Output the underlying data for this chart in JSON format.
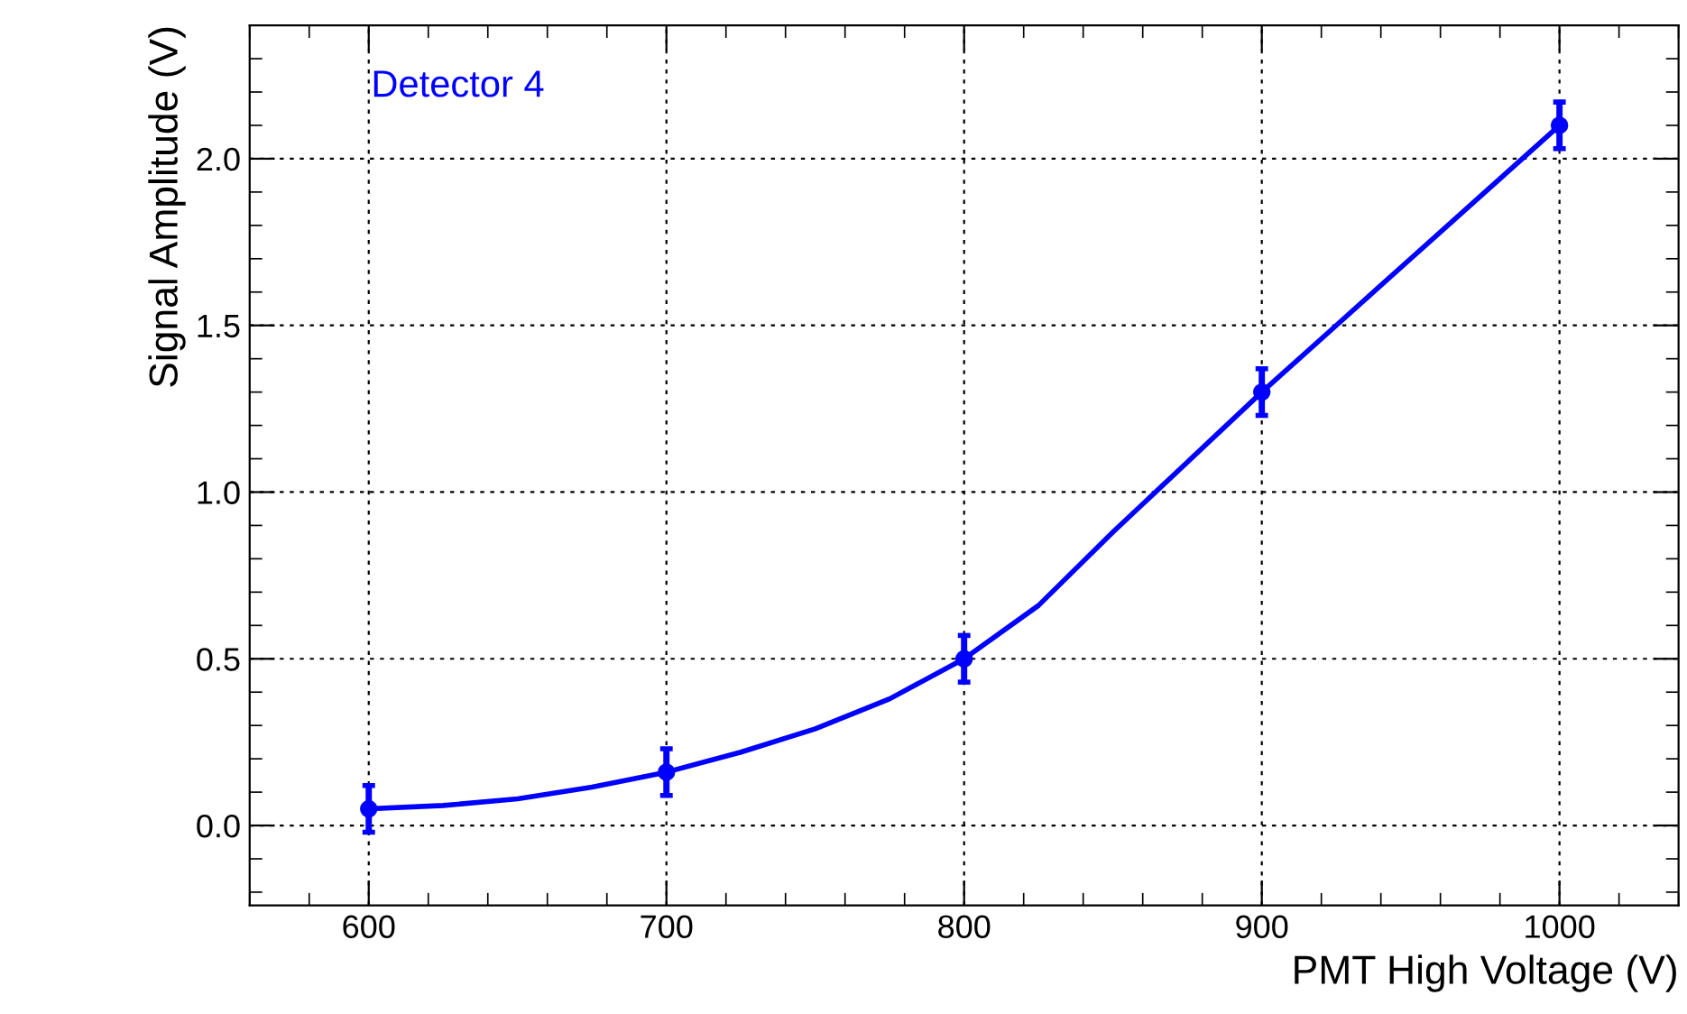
{
  "chart_data": {
    "type": "scatter",
    "xlabel": "PMT High Voltage (V)",
    "ylabel": "Signal Amplitude (V)",
    "annotations": [
      "Detector 4"
    ],
    "xlim": [
      560,
      1040
    ],
    "ylim": [
      -0.24,
      2.4
    ],
    "xticks": [
      600,
      700,
      800,
      900,
      1000
    ],
    "yticks": [
      {
        "value": 0,
        "label": "0.0"
      },
      {
        "value": 0.5,
        "label": "0.5"
      },
      {
        "value": 1,
        "label": "1.0"
      },
      {
        "value": 1.5,
        "label": "1.5"
      },
      {
        "value": 2,
        "label": "2.0"
      }
    ],
    "grid": true,
    "marker": "circle",
    "series": [
      {
        "color": "#0000ff",
        "x": [
          600,
          700,
          800,
          900,
          1000
        ],
        "values": [
          0.05,
          0.16,
          0.5,
          1.3,
          2.1
        ],
        "errors": [
          0.07,
          0.07,
          0.07,
          0.07,
          0.07
        ]
      },
      {
        "type": "line",
        "color": "#0000ff",
        "x": [
          600,
          625,
          650,
          675,
          700,
          725,
          750,
          775,
          800,
          825,
          850,
          875,
          900,
          925,
          950,
          975,
          1000
        ],
        "values": [
          0.05,
          0.06,
          0.08,
          0.115,
          0.16,
          0.22,
          0.29,
          0.38,
          0.5,
          0.66,
          0.88,
          1.09,
          1.3,
          1.5,
          1.7,
          1.9,
          2.1
        ],
        "marker": "none"
      }
    ]
  }
}
